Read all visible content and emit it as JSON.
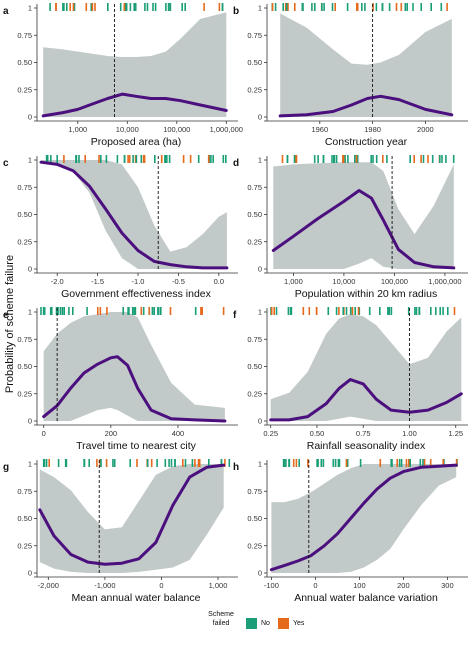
{
  "figure": {
    "ylabel": "Probability of scheme failure",
    "legend": {
      "title_line1": "Scheme",
      "title_line2": "failed",
      "items": [
        {
          "label": "No",
          "color": "#1a9e77"
        },
        {
          "label": "Yes",
          "color": "#e66a1c"
        }
      ]
    },
    "colors": {
      "ribbon": "#c2c9c9",
      "line": "#4b0f7e",
      "dashed": "#111111"
    }
  },
  "chart_data": [
    {
      "panel": "a",
      "type": "line",
      "xlabel": "Proposed area (ha)",
      "xscale": "log",
      "xlim": [
        150,
        1500000
      ],
      "ylim": [
        0,
        1
      ],
      "xticks": [
        1000,
        10000,
        100000,
        1000000
      ],
      "xtick_labels": [
        "1,000",
        "10,000",
        "100,000",
        "1,000,000"
      ],
      "yticks": [
        0,
        0.25,
        0.5,
        0.75,
        1
      ],
      "ytick_labels": [
        "0",
        "0.25",
        "0.50",
        "0.75",
        "1"
      ],
      "dashed_x": 5500,
      "x": [
        200,
        500,
        1000,
        2000,
        4000,
        8000,
        15000,
        30000,
        60000,
        120000,
        300000,
        1000000
      ],
      "y": [
        0.01,
        0.04,
        0.07,
        0.12,
        0.17,
        0.21,
        0.19,
        0.17,
        0.17,
        0.15,
        0.11,
        0.06
      ],
      "lower": [
        0,
        0,
        0,
        0,
        0,
        0,
        0,
        0,
        0,
        0,
        0,
        0
      ],
      "upper": [
        0.64,
        0.62,
        0.6,
        0.58,
        0.56,
        0.55,
        0.55,
        0.56,
        0.6,
        0.72,
        0.9,
        0.96
      ]
    },
    {
      "panel": "b",
      "type": "line",
      "xlabel": "Construction year",
      "xscale": "linear",
      "xlim": [
        1940,
        2015
      ],
      "ylim": [
        0,
        1
      ],
      "xticks": [
        1960,
        1980,
        2000
      ],
      "xtick_labels": [
        "1960",
        "1980",
        "2000"
      ],
      "yticks": [
        0,
        0.25,
        0.5,
        0.75,
        1
      ],
      "ytick_labels": [
        "0",
        "0.25",
        "0.50",
        "0.75",
        "1"
      ],
      "dashed_x": 1980,
      "x": [
        1945,
        1955,
        1965,
        1972,
        1978,
        1983,
        1990,
        2000,
        2010
      ],
      "y": [
        0.01,
        0.02,
        0.05,
        0.11,
        0.17,
        0.19,
        0.16,
        0.07,
        0.02
      ],
      "lower": [
        0,
        0,
        0,
        0,
        0,
        0,
        0,
        0,
        0
      ],
      "upper": [
        0.95,
        0.82,
        0.62,
        0.49,
        0.48,
        0.5,
        0.57,
        0.78,
        0.9
      ]
    },
    {
      "panel": "c",
      "type": "line",
      "xlabel": "Government effectiveness index",
      "xscale": "linear",
      "xlim": [
        -2.25,
        0.2
      ],
      "ylim": [
        0,
        1
      ],
      "xticks": [
        -2.0,
        -1.5,
        -1.0,
        -0.5,
        0.0
      ],
      "xtick_labels": [
        "-2.0",
        "-1.5",
        "-1.0",
        "-0.5",
        "0.0"
      ],
      "yticks": [
        0,
        0.25,
        0.5,
        0.75,
        1
      ],
      "ytick_labels": [
        "0",
        "0.25",
        "0.50",
        "0.75",
        "1"
      ],
      "dashed_x": -0.75,
      "x": [
        -2.2,
        -2.0,
        -1.8,
        -1.6,
        -1.4,
        -1.2,
        -1.0,
        -0.8,
        -0.6,
        -0.4,
        -0.2,
        0.0,
        0.1
      ],
      "y": [
        0.98,
        0.96,
        0.9,
        0.76,
        0.55,
        0.33,
        0.17,
        0.07,
        0.04,
        0.02,
        0.01,
        0.01,
        0.01
      ],
      "lower": [
        0.97,
        0.96,
        0.89,
        0.7,
        0.35,
        0.1,
        0.0,
        0.0,
        0.0,
        0.0,
        0.0,
        0.0,
        0.0
      ],
      "upper": [
        1,
        1,
        1,
        1,
        1,
        0.96,
        0.75,
        0.4,
        0.16,
        0.2,
        0.32,
        0.48,
        0.52
      ]
    },
    {
      "panel": "d",
      "type": "line",
      "xlabel": "Population within 20 km radius",
      "xscale": "log",
      "xlim": [
        300,
        2500000
      ],
      "ylim": [
        0,
        1
      ],
      "xticks": [
        1000,
        10000,
        100000,
        1000000
      ],
      "xtick_labels": [
        "1,000",
        "10,000",
        "100,000",
        "1,000,000"
      ],
      "yticks": [
        0,
        0.25,
        0.5,
        0.75,
        1
      ],
      "ytick_labels": [
        "0",
        "0.25",
        "0.50",
        "0.75",
        "1"
      ],
      "dashed_x": 90000,
      "x": [
        400,
        1000,
        3000,
        10000,
        20000,
        35000,
        60000,
        120000,
        250000,
        600000,
        1500000
      ],
      "y": [
        0.17,
        0.3,
        0.46,
        0.62,
        0.72,
        0.65,
        0.45,
        0.18,
        0.06,
        0.02,
        0.01
      ],
      "lower": [
        0,
        0,
        0,
        0,
        0.05,
        0.1,
        0.02,
        0,
        0,
        0,
        0
      ],
      "upper": [
        0.94,
        0.96,
        0.97,
        0.98,
        0.98,
        0.98,
        0.9,
        0.55,
        0.32,
        0.58,
        0.96
      ]
    },
    {
      "panel": "e",
      "type": "line",
      "xlabel": "Travel time to nearest city",
      "xscale": "linear",
      "xlim": [
        -20,
        570
      ],
      "ylim": [
        0,
        1
      ],
      "xticks": [
        0,
        200,
        400
      ],
      "xtick_labels": [
        "0",
        "200",
        "400"
      ],
      "yticks": [
        0,
        0.25,
        0.5,
        0.75,
        1
      ],
      "ytick_labels": [
        "0",
        "0.25",
        "0.50",
        "0.75",
        "1"
      ],
      "dashed_x": 40,
      "x": [
        0,
        40,
        80,
        120,
        160,
        200,
        220,
        250,
        280,
        320,
        380,
        450,
        540
      ],
      "y": [
        0.04,
        0.14,
        0.3,
        0.44,
        0.52,
        0.58,
        0.59,
        0.51,
        0.3,
        0.1,
        0.02,
        0.01,
        0.0
      ],
      "lower": [
        0,
        0,
        0,
        0.05,
        0.1,
        0.12,
        0.1,
        0.05,
        0.0,
        0,
        0,
        0,
        0
      ],
      "upper": [
        0.64,
        0.8,
        0.9,
        0.96,
        0.98,
        1,
        1,
        1,
        0.95,
        0.7,
        0.35,
        0.15,
        0.12
      ]
    },
    {
      "panel": "f",
      "type": "line",
      "xlabel": "Rainfall seasonality index",
      "xscale": "linear",
      "xlim": [
        0.23,
        1.3
      ],
      "ylim": [
        0,
        1
      ],
      "xticks": [
        0.25,
        0.5,
        0.75,
        1.0,
        1.25
      ],
      "xtick_labels": [
        "0.25",
        "0.50",
        "0.75",
        "1.00",
        "1.25"
      ],
      "yticks": [
        0,
        0.25,
        0.5,
        0.75,
        1
      ],
      "ytick_labels": [
        "0",
        "0.25",
        "0.50",
        "0.75",
        "1"
      ],
      "dashed_x": 1.0,
      "x": [
        0.25,
        0.35,
        0.45,
        0.55,
        0.62,
        0.68,
        0.75,
        0.82,
        0.9,
        1.0,
        1.1,
        1.2,
        1.28
      ],
      "y": [
        0.01,
        0.01,
        0.04,
        0.16,
        0.3,
        0.38,
        0.34,
        0.2,
        0.1,
        0.08,
        0.1,
        0.17,
        0.25
      ],
      "lower": [
        0,
        0,
        0,
        0,
        0.02,
        0.04,
        0.02,
        0,
        0,
        0,
        0,
        0,
        0
      ],
      "upper": [
        0.2,
        0.26,
        0.45,
        0.8,
        0.94,
        0.98,
        0.96,
        0.88,
        0.72,
        0.52,
        0.58,
        0.82,
        0.95
      ]
    },
    {
      "panel": "g",
      "type": "line",
      "xlabel": "Mean annual water balance",
      "xscale": "linear",
      "xlim": [
        -2200,
        1300
      ],
      "ylim": [
        0,
        1
      ],
      "xticks": [
        -2000,
        -1000,
        0,
        1000
      ],
      "xtick_labels": [
        "-2,000",
        "-1,000",
        "0",
        "1,000"
      ],
      "yticks": [
        0,
        0.25,
        0.5,
        0.75,
        1
      ],
      "ytick_labels": [
        "0",
        "0.25",
        "0.50",
        "0.75",
        "1"
      ],
      "dashed_x": -1100,
      "x": [
        -2150,
        -1900,
        -1600,
        -1300,
        -1000,
        -700,
        -400,
        -100,
        200,
        500,
        800,
        1100
      ],
      "y": [
        0.58,
        0.34,
        0.17,
        0.1,
        0.08,
        0.09,
        0.13,
        0.28,
        0.62,
        0.88,
        0.97,
        0.99
      ],
      "lower": [
        0.1,
        0.04,
        0.01,
        0.0,
        0.0,
        0.0,
        0.01,
        0.03,
        0.05,
        0.12,
        0.35,
        0.6
      ],
      "upper": [
        0.95,
        0.88,
        0.76,
        0.56,
        0.4,
        0.42,
        0.66,
        0.9,
        0.98,
        1,
        1,
        1
      ]
    },
    {
      "panel": "h",
      "type": "line",
      "xlabel": "Annual water balance variation",
      "xscale": "linear",
      "xlim": [
        -110,
        340
      ],
      "ylim": [
        0,
        1
      ],
      "xticks": [
        -100,
        0,
        100,
        200,
        300
      ],
      "xtick_labels": [
        "-100",
        "0",
        "100",
        "200",
        "300"
      ],
      "yticks": [
        0,
        0.25,
        0.5,
        0.75,
        1
      ],
      "ytick_labels": [
        "0",
        "0.25",
        "0.50",
        "0.75",
        "1"
      ],
      "dashed_x": -15,
      "x": [
        -100,
        -70,
        -40,
        -10,
        20,
        50,
        80,
        110,
        140,
        170,
        200,
        240,
        280,
        320
      ],
      "y": [
        0.03,
        0.07,
        0.11,
        0.16,
        0.25,
        0.36,
        0.5,
        0.64,
        0.77,
        0.87,
        0.93,
        0.97,
        0.98,
        0.99
      ],
      "lower": [
        0,
        0,
        0,
        0,
        0,
        0,
        0.01,
        0.05,
        0.12,
        0.22,
        0.4,
        0.62,
        0.8,
        0.88
      ],
      "upper": [
        0.65,
        0.65,
        0.68,
        0.74,
        0.82,
        0.9,
        0.96,
        1,
        1,
        1,
        1,
        1,
        1,
        1
      ]
    }
  ]
}
